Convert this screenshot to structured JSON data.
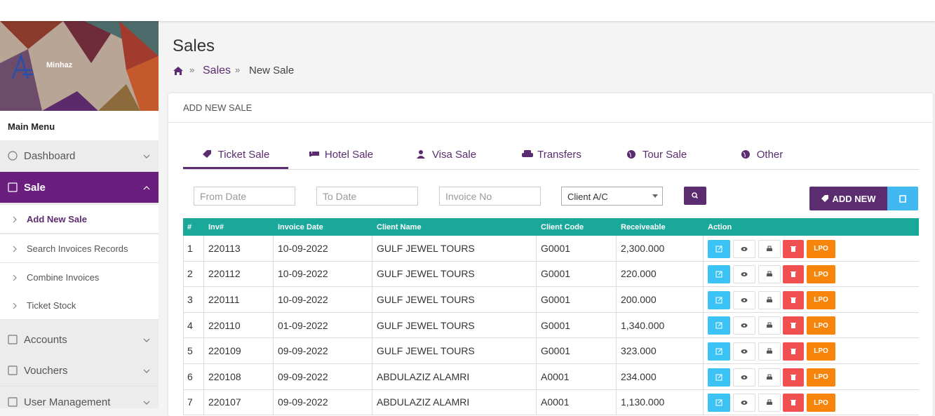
{
  "sidebar": {
    "user": "Minhaz",
    "menu_title": "Main Menu",
    "menu": [
      "Dashboard",
      "Sale",
      "Accounts",
      "Vouchers",
      "User Management"
    ],
    "submenu": [
      "Add New Sale",
      "Search Invoices Records",
      "Combine Invoices",
      "Ticket Stock"
    ]
  },
  "header": {
    "title": "Sales",
    "breadcrumb": [
      "Sales",
      "New Sale"
    ]
  },
  "card": {
    "title": "ADD NEW SALE",
    "tabs": [
      "Ticket Sale",
      "Hotel Sale",
      "Visa Sale",
      "Transfers",
      "Tour Sale",
      "Other"
    ]
  },
  "filters": {
    "placeholders": [
      "From Date",
      "To Date",
      "Invoice No"
    ],
    "select": "Client A/C",
    "add_button": "ADD NEW"
  },
  "table": {
    "columns": [
      "#",
      "Inv#",
      "Invoice Date",
      "Client Name",
      "Client Code",
      "Receiveable",
      "Action"
    ],
    "action_label": "LPO",
    "rows": [
      [
        "1",
        "220113",
        "10-09-2022",
        "GULF JEWEL TOURS",
        "G0001",
        "2,300.000"
      ],
      [
        "2",
        "220112",
        "10-09-2022",
        "GULF JEWEL TOURS",
        "G0001",
        "220.000"
      ],
      [
        "3",
        "220111",
        "10-09-2022",
        "GULF JEWEL TOURS",
        "G0001",
        "200.000"
      ],
      [
        "4",
        "220110",
        "01-09-2022",
        "GULF JEWEL TOURS",
        "G0001",
        "1,340.000"
      ],
      [
        "5",
        "220109",
        "09-09-2022",
        "GULF JEWEL TOURS",
        "G0001",
        "323.000"
      ],
      [
        "6",
        "220108",
        "09-09-2022",
        "ABDULAZIZ ALAMRI",
        "A0001",
        "234.000"
      ],
      [
        "7",
        "220107",
        "09-09-2022",
        "ABDULAZIZ ALAMRI",
        "A0001",
        "1,130.000"
      ]
    ]
  }
}
